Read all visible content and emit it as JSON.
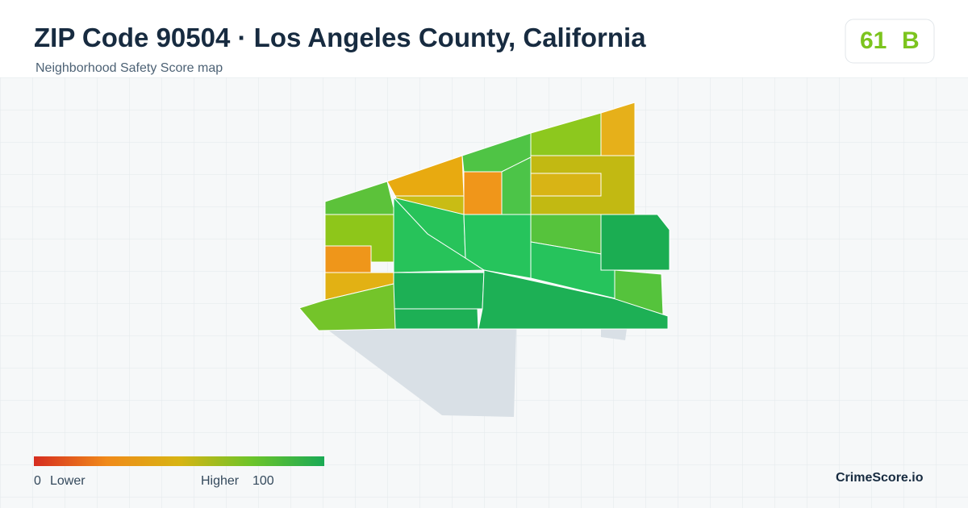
{
  "header": {
    "title": "ZIP Code 90504 · Los Angeles County, California",
    "subtitle": "Neighborhood Safety Score map"
  },
  "score": {
    "value": 61,
    "grade": "B"
  },
  "legend": {
    "min": 0,
    "min_label": "Lower",
    "max_label": "Higher",
    "max": 100
  },
  "brand": "CrimeScore.io"
}
